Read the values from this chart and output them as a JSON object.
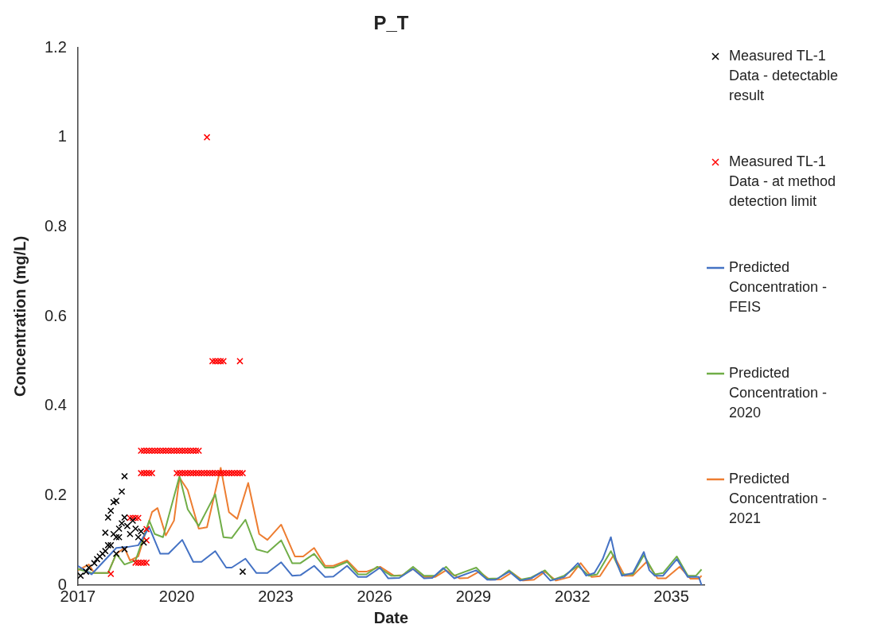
{
  "chart_data": {
    "type": "line",
    "title": "P_T",
    "xlabel": "Date",
    "ylabel": "Concentration (mg/L)",
    "xlim": [
      "2017",
      "2036"
    ],
    "xticks": [
      "2017",
      "2020",
      "2023",
      "2026",
      "2029",
      "2032",
      "2035"
    ],
    "ylim": [
      0,
      1.2
    ],
    "yticks": [
      0,
      0.2,
      0.4,
      0.6,
      0.8,
      1,
      1.2
    ],
    "grid": false,
    "legend": "right",
    "series": [
      {
        "name": "Measured TL-1 Data - detectable result",
        "type": "scatter",
        "marker": "cross",
        "color": "#000000",
        "x": [
          "2017-02",
          "2017-04",
          "2017-05",
          "2017-07",
          "2017-08",
          "2017-09",
          "2017-10",
          "2017-11",
          "2017-12",
          "2017-11",
          "2017-12",
          "2018-01",
          "2018-02",
          "2018-03",
          "2018-05",
          "2018-06",
          "2018-02",
          "2018-03",
          "2018-04",
          "2018-05",
          "2018-06",
          "2018-07",
          "2018-08",
          "2018-09",
          "2018-10",
          "2018-11",
          "2018-12",
          "2019-01",
          "2018-06",
          "2018-03",
          "2018-01",
          "2018-04",
          "2022-01"
        ],
        "values": [
          0.021,
          0.03,
          0.039,
          0.049,
          0.058,
          0.064,
          0.07,
          0.076,
          0.089,
          0.117,
          0.151,
          0.166,
          0.185,
          0.188,
          0.209,
          0.243,
          0.114,
          0.107,
          0.126,
          0.138,
          0.151,
          0.132,
          0.114,
          0.144,
          0.126,
          0.107,
          0.12,
          0.095,
          0.08,
          0.07,
          0.089,
          0.107,
          0.03
        ]
      },
      {
        "name": "Measured TL-1 Data - at method detection limit",
        "type": "scatter",
        "marker": "cross",
        "color": "#ff0000",
        "x": [
          "2018-01",
          "2018-10",
          "2018-11",
          "2018-12",
          "2019-01",
          "2019-02",
          "2018-08",
          "2018-09",
          "2018-10",
          "2018-11",
          "2019-02",
          "2019-02",
          "2018-12",
          "2019-01",
          "2019-02",
          "2019-03",
          "2019-04",
          "2018-12",
          "2019-01",
          "2019-02",
          "2019-03",
          "2019-04",
          "2019-05",
          "2019-06",
          "2019-07",
          "2019-08",
          "2019-09",
          "2019-10",
          "2019-11",
          "2019-12",
          "2020-01",
          "2020-02",
          "2020-03",
          "2020-04",
          "2020-05",
          "2020-06",
          "2020-07",
          "2020-08",
          "2020-09",
          "2020-01",
          "2020-02",
          "2020-03",
          "2020-04",
          "2020-05",
          "2020-06",
          "2020-07",
          "2020-08",
          "2020-09",
          "2020-10",
          "2020-11",
          "2020-12",
          "2021-01",
          "2021-02",
          "2021-03",
          "2021-04",
          "2021-05",
          "2021-06",
          "2021-07",
          "2021-08",
          "2021-09",
          "2021-10",
          "2021-11",
          "2021-12",
          "2022-01",
          "2021-02",
          "2021-03",
          "2021-04",
          "2021-05",
          "2021-06",
          "2021-12",
          "2020-12"
        ],
        "values": [
          0.025,
          0.05,
          0.05,
          0.05,
          0.05,
          0.05,
          0.15,
          0.15,
          0.15,
          0.15,
          0.1,
          0.125,
          0.25,
          0.25,
          0.25,
          0.25,
          0.25,
          0.3,
          0.3,
          0.3,
          0.3,
          0.3,
          0.3,
          0.3,
          0.3,
          0.3,
          0.3,
          0.3,
          0.3,
          0.3,
          0.3,
          0.3,
          0.3,
          0.3,
          0.3,
          0.3,
          0.3,
          0.3,
          0.3,
          0.25,
          0.25,
          0.25,
          0.25,
          0.25,
          0.25,
          0.25,
          0.25,
          0.25,
          0.25,
          0.25,
          0.25,
          0.25,
          0.25,
          0.25,
          0.25,
          0.25,
          0.25,
          0.25,
          0.25,
          0.25,
          0.25,
          0.25,
          0.25,
          0.25,
          0.5,
          0.5,
          0.5,
          0.5,
          0.5,
          0.5,
          1
        ]
      },
      {
        "name": "Predicted Concentration - FEIS",
        "type": "line",
        "marker": "none",
        "color": "#4472c4",
        "x": [
          "2017-01",
          "2017-06",
          "2018-03",
          "2018-07",
          "2018-11",
          "2019-03",
          "2019-07",
          "2019-10",
          "2020-03",
          "2020-07",
          "2020-10",
          "2021-03",
          "2021-07",
          "2021-09",
          "2022-02",
          "2022-06",
          "2022-10",
          "2023-03",
          "2023-07",
          "2023-10",
          "2024-03",
          "2024-07",
          "2024-10",
          "2025-03",
          "2025-07",
          "2025-10",
          "2026-03",
          "2026-06",
          "2026-10",
          "2027-03",
          "2027-07",
          "2027-10",
          "2028-02",
          "2028-06",
          "2029-02",
          "2029-06",
          "2029-09",
          "2030-02",
          "2030-06",
          "2030-10",
          "2031-02",
          "2031-05",
          "2031-10",
          "2032-03",
          "2032-06",
          "2032-09",
          "2032-12",
          "2033-03",
          "2033-05",
          "2033-07",
          "2033-11",
          "2034-03",
          "2034-05",
          "2034-07",
          "2034-10",
          "2035-03",
          "2035-07",
          "2035-11",
          "2035-12"
        ],
        "values": [
          0.043,
          0.024,
          0.083,
          0.085,
          0.089,
          0.129,
          0.07,
          0.07,
          0.101,
          0.052,
          0.052,
          0.076,
          0.039,
          0.039,
          0.059,
          0.027,
          0.027,
          0.051,
          0.021,
          0.022,
          0.043,
          0.018,
          0.019,
          0.043,
          0.018,
          0.018,
          0.039,
          0.015,
          0.016,
          0.036,
          0.015,
          0.016,
          0.038,
          0.015,
          0.033,
          0.012,
          0.012,
          0.03,
          0.01,
          0.015,
          0.03,
          0.01,
          0.018,
          0.049,
          0.021,
          0.027,
          0.058,
          0.107,
          0.052,
          0.021,
          0.027,
          0.074,
          0.033,
          0.021,
          0.021,
          0.058,
          0.018,
          0.018,
          0
        ]
      },
      {
        "name": "Predicted Concentration - 2020",
        "type": "line",
        "marker": "none",
        "color": "#70ad47",
        "x": [
          "2017-01",
          "2017-06",
          "2017-12",
          "2018-03",
          "2018-06",
          "2018-10",
          "2019-03",
          "2019-05",
          "2019-08",
          "2020-02",
          "2020-05",
          "2020-09",
          "2021-03",
          "2021-06",
          "2021-09",
          "2022-02",
          "2022-06",
          "2022-10",
          "2023-03",
          "2023-07",
          "2023-10",
          "2024-03",
          "2024-07",
          "2024-10",
          "2025-03",
          "2025-07",
          "2025-10",
          "2026-02",
          "2026-07",
          "2026-11",
          "2027-03",
          "2027-07",
          "2027-11",
          "2028-03",
          "2028-06",
          "2029-02",
          "2029-06",
          "2029-10",
          "2030-02",
          "2030-06",
          "2030-10",
          "2031-03",
          "2031-06",
          "2031-10",
          "2032-03",
          "2032-07",
          "2032-10",
          "2033-03",
          "2033-07",
          "2033-11",
          "2034-03",
          "2034-07",
          "2034-10",
          "2035-03",
          "2035-07",
          "2035-10",
          "2035-12"
        ],
        "values": [
          0.036,
          0.027,
          0.027,
          0.07,
          0.046,
          0.055,
          0.144,
          0.114,
          0.107,
          0.243,
          0.169,
          0.132,
          0.203,
          0.107,
          0.105,
          0.146,
          0.08,
          0.073,
          0.1,
          0.049,
          0.049,
          0.07,
          0.039,
          0.039,
          0.052,
          0.024,
          0.024,
          0.041,
          0.021,
          0.021,
          0.041,
          0.021,
          0.021,
          0.041,
          0.021,
          0.039,
          0.014,
          0.015,
          0.033,
          0.012,
          0.017,
          0.033,
          0.012,
          0.021,
          0.043,
          0.021,
          0.024,
          0.076,
          0.024,
          0.024,
          0.067,
          0.024,
          0.027,
          0.064,
          0.021,
          0.021,
          0.035
        ]
      },
      {
        "name": "Predicted Concentration - 2021",
        "type": "line",
        "marker": "none",
        "color": "#ed7d31",
        "x": [
          "2017-01",
          "2017-05",
          "2017-07",
          "2017-12",
          "2018-03",
          "2018-06",
          "2018-08",
          "2018-11",
          "2019-04",
          "2019-06",
          "2019-09",
          "2019-12",
          "2020-02",
          "2020-05",
          "2020-09",
          "2020-12",
          "2021-05",
          "2021-08",
          "2021-11",
          "2022-03",
          "2022-07",
          "2022-10",
          "2023-03",
          "2023-08",
          "2023-11",
          "2024-03",
          "2024-07",
          "2024-10",
          "2025-03",
          "2025-07",
          "2025-10",
          "2026-03",
          "2026-08",
          "2026-11",
          "2027-03",
          "2027-07",
          "2027-11",
          "2028-03",
          "2028-08",
          "2028-11",
          "2029-03",
          "2029-07",
          "2029-11",
          "2030-03",
          "2030-07",
          "2030-11",
          "2031-03",
          "2031-07",
          "2031-12",
          "2032-04",
          "2032-08",
          "2032-11",
          "2033-04",
          "2033-08",
          "2033-11",
          "2034-04",
          "2034-08",
          "2034-11",
          "2035-04",
          "2035-08",
          "2035-11",
          "2035-12"
        ],
        "values": [
          0.033,
          0.046,
          0.027,
          0.027,
          0.07,
          0.083,
          0.055,
          0.064,
          0.163,
          0.172,
          0.111,
          0.144,
          0.24,
          0.212,
          0.126,
          0.129,
          0.262,
          0.163,
          0.148,
          0.228,
          0.114,
          0.101,
          0.135,
          0.064,
          0.064,
          0.083,
          0.043,
          0.043,
          0.055,
          0.03,
          0.03,
          0.041,
          0.021,
          0.022,
          0.036,
          0.018,
          0.018,
          0.033,
          0.015,
          0.016,
          0.03,
          0.012,
          0.013,
          0.028,
          0.01,
          0.012,
          0.03,
          0.01,
          0.018,
          0.049,
          0.018,
          0.02,
          0.067,
          0.021,
          0.021,
          0.052,
          0.015,
          0.015,
          0.041,
          0.014,
          0.014,
          0.021
        ]
      }
    ]
  }
}
